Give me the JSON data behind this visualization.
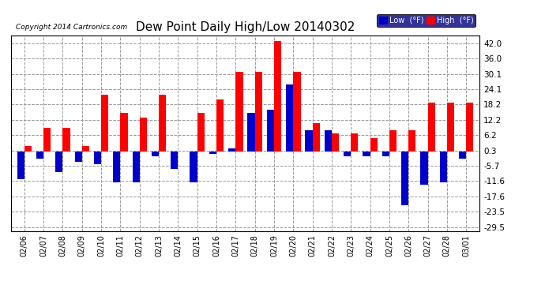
{
  "title": "Dew Point Daily High/Low 20140302",
  "copyright": "Copyright 2014 Cartronics.com",
  "dates": [
    "02/06",
    "02/07",
    "02/08",
    "02/09",
    "02/10",
    "02/11",
    "02/12",
    "02/13",
    "02/14",
    "02/15",
    "02/16",
    "02/17",
    "02/18",
    "02/19",
    "02/20",
    "02/21",
    "02/22",
    "02/23",
    "02/24",
    "02/25",
    "02/26",
    "02/27",
    "02/28",
    "03/01"
  ],
  "high": [
    2,
    9,
    9,
    2,
    22,
    15,
    13,
    22,
    0,
    15,
    20,
    31,
    31,
    43,
    31,
    11,
    7,
    7,
    5,
    8,
    8,
    19,
    19,
    19
  ],
  "low": [
    -11,
    -3,
    -8,
    -4,
    -5,
    -12,
    -12,
    -2,
    -7,
    -12,
    -1,
    1,
    15,
    16,
    26,
    8,
    8,
    -2,
    -2,
    -2,
    -21,
    -13,
    -12,
    -3
  ],
  "high_color": "#ff0000",
  "low_color": "#0000cc",
  "bg_color": "#ffffff",
  "grid_color": "#999999",
  "yticks": [
    42.0,
    36.0,
    30.1,
    24.1,
    18.2,
    12.2,
    6.2,
    0.3,
    -5.7,
    -11.6,
    -17.6,
    -23.5,
    -29.5
  ],
  "ylim": [
    -31,
    45
  ],
  "bar_width": 0.38,
  "legend_low_label": "Low  (°F)",
  "legend_high_label": "High  (°F)"
}
